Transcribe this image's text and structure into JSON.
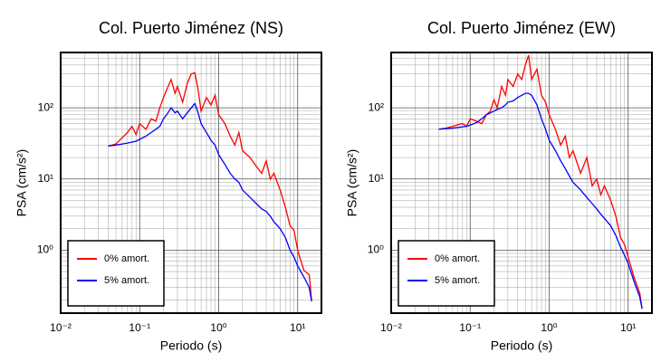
{
  "chart_data": [
    {
      "type": "line",
      "title": "Col. Puerto Jiménez (NS)",
      "x_label": "Periodo (s)",
      "y_label": "PSA (cm/s²)",
      "log_x": true,
      "log_y": true,
      "grid": true,
      "minor_grid": true,
      "legend": "lower left",
      "xlim": [
        0.01,
        20
      ],
      "ylim": [
        0.13,
        600
      ],
      "xticks": [
        {
          "value": 0.01,
          "label": "10⁻²"
        },
        {
          "value": 0.1,
          "label": "10⁻¹"
        },
        {
          "value": 1,
          "label": "10⁰"
        },
        {
          "value": 10,
          "label": "10¹"
        }
      ],
      "yticks": [
        {
          "value": 1,
          "label": "10⁰"
        },
        {
          "value": 10,
          "label": "10¹"
        },
        {
          "value": 100,
          "label": "10²"
        }
      ],
      "x": [
        0.04,
        0.05,
        0.06,
        0.07,
        0.08,
        0.09,
        0.1,
        0.12,
        0.14,
        0.16,
        0.18,
        0.2,
        0.22,
        0.25,
        0.28,
        0.3,
        0.35,
        0.4,
        0.45,
        0.5,
        0.55,
        0.6,
        0.7,
        0.8,
        0.9,
        1.0,
        1.2,
        1.4,
        1.6,
        1.8,
        2,
        2.5,
        3,
        3.5,
        4,
        4.5,
        5,
        6,
        7,
        8,
        9,
        10,
        12,
        14,
        15
      ],
      "series": [
        {
          "name": "0% amort.",
          "color": "#ff0000",
          "values": [
            29,
            31,
            38,
            45,
            55,
            42,
            60,
            50,
            70,
            65,
            100,
            140,
            180,
            250,
            160,
            200,
            120,
            220,
            300,
            310,
            180,
            90,
            140,
            110,
            150,
            80,
            60,
            40,
            30,
            45,
            25,
            20,
            15,
            12,
            18,
            10,
            12,
            7,
            4,
            2.2,
            1.9,
            1.0,
            0.52,
            0.45,
            0.2
          ]
        },
        {
          "name": "5% amort.",
          "color": "#0000ff",
          "values": [
            29,
            30,
            31,
            32,
            33,
            34,
            36,
            40,
            45,
            50,
            55,
            70,
            80,
            100,
            85,
            90,
            70,
            85,
            100,
            115,
            85,
            60,
            45,
            35,
            30,
            22,
            16,
            12,
            10,
            9,
            7,
            5.5,
            4.5,
            3.8,
            3.5,
            3,
            2.5,
            2,
            1.5,
            1.0,
            0.8,
            0.6,
            0.42,
            0.3,
            0.19
          ]
        }
      ]
    },
    {
      "type": "line",
      "title": "Col. Puerto Jiménez (EW)",
      "x_label": "Periodo (s)",
      "y_label": "PSA (cm/s²)",
      "log_x": true,
      "log_y": true,
      "grid": true,
      "minor_grid": true,
      "legend": "lower left",
      "xlim": [
        0.01,
        20
      ],
      "ylim": [
        0.13,
        600
      ],
      "xticks": [
        {
          "value": 0.01,
          "label": "10⁻²"
        },
        {
          "value": 0.1,
          "label": "10⁻¹"
        },
        {
          "value": 1,
          "label": "10⁰"
        },
        {
          "value": 10,
          "label": "10¹"
        }
      ],
      "yticks": [
        {
          "value": 1,
          "label": "10⁰"
        },
        {
          "value": 10,
          "label": "10¹"
        },
        {
          "value": 100,
          "label": "10²"
        }
      ],
      "x": [
        0.04,
        0.05,
        0.06,
        0.07,
        0.08,
        0.09,
        0.1,
        0.12,
        0.14,
        0.16,
        0.18,
        0.2,
        0.22,
        0.25,
        0.28,
        0.3,
        0.35,
        0.4,
        0.45,
        0.5,
        0.55,
        0.6,
        0.7,
        0.8,
        0.9,
        1.0,
        1.2,
        1.4,
        1.6,
        1.8,
        2,
        2.5,
        3,
        3.5,
        4,
        4.5,
        5,
        6,
        7,
        8,
        9,
        10,
        12,
        14,
        15
      ],
      "series": [
        {
          "name": "0% amort.",
          "color": "#ff0000",
          "values": [
            50,
            52,
            55,
            58,
            60,
            55,
            70,
            65,
            60,
            80,
            90,
            130,
            100,
            200,
            150,
            250,
            200,
            300,
            250,
            400,
            550,
            250,
            350,
            150,
            120,
            80,
            50,
            30,
            40,
            20,
            25,
            12,
            20,
            8,
            10,
            6,
            8,
            5,
            3,
            1.5,
            1.2,
            0.8,
            0.4,
            0.25,
            0.15
          ]
        },
        {
          "name": "5% amort.",
          "color": "#0000ff",
          "values": [
            50,
            51,
            52,
            53,
            54,
            55,
            57,
            62,
            70,
            80,
            85,
            90,
            95,
            100,
            110,
            120,
            125,
            140,
            150,
            160,
            160,
            150,
            110,
            70,
            50,
            35,
            25,
            18,
            14,
            11,
            9,
            7,
            5.5,
            4.5,
            3.8,
            3.2,
            2.8,
            2.2,
            1.6,
            1.1,
            0.85,
            0.65,
            0.35,
            0.22,
            0.15
          ]
        }
      ]
    }
  ]
}
